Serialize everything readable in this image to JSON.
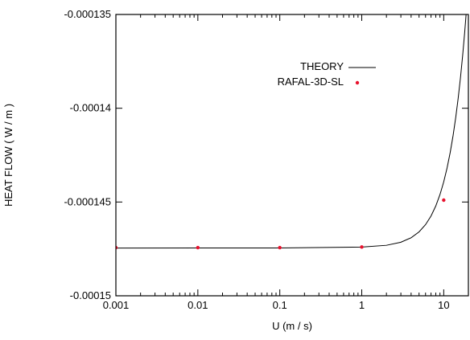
{
  "chart_data": {
    "type": "line",
    "xscale": "log",
    "xlim": [
      0.001,
      20
    ],
    "ylim": [
      -0.00015,
      -0.000135
    ],
    "xlabel": "U (m / s)",
    "ylabel": "HEAT FLOW ( W / m )",
    "xticks": [
      0.001,
      0.01,
      0.1,
      1,
      10
    ],
    "xtick_labels": [
      "0.001",
      "0.01",
      "0.1",
      "1",
      "10"
    ],
    "yticks": [
      -0.000135,
      -0.00014,
      -0.000145,
      -0.00015
    ],
    "ytick_labels": [
      "-0.000135",
      "-0.00014",
      "-0.000145",
      "-0.00015"
    ],
    "legend_position": "top-right, inside",
    "grid": false,
    "series": [
      {
        "name": "THEORY",
        "kind": "line",
        "color": "#000000",
        "x": [
          0.001,
          0.01,
          0.1,
          1,
          2,
          3,
          4,
          5,
          6,
          7,
          8,
          9,
          10,
          11,
          12,
          13,
          14,
          15,
          16,
          17,
          18,
          19,
          20
        ],
        "y": [
          -0.000147453,
          -0.000147452,
          -0.00014745,
          -0.0001474,
          -0.000147308,
          -0.000147143,
          -0.000146906,
          -0.000146593,
          -0.000146206,
          -0.000145745,
          -0.000145211,
          -0.000144604,
          -0.000143926,
          -0.000143176,
          -0.000142356,
          -0.000141466,
          -0.000140506,
          -0.000139477,
          -0.00013838,
          -0.000137215,
          -0.000135983,
          -0.000134684,
          -0.000133318
        ]
      },
      {
        "name": "RAFAL-3D-SL",
        "kind": "points",
        "color": "#e8112d",
        "x": [
          0.001,
          0.01,
          0.1,
          1,
          10
        ],
        "y": [
          -0.00014743,
          -0.00014743,
          -0.00014743,
          -0.0001474,
          -0.0001449
        ]
      }
    ]
  }
}
